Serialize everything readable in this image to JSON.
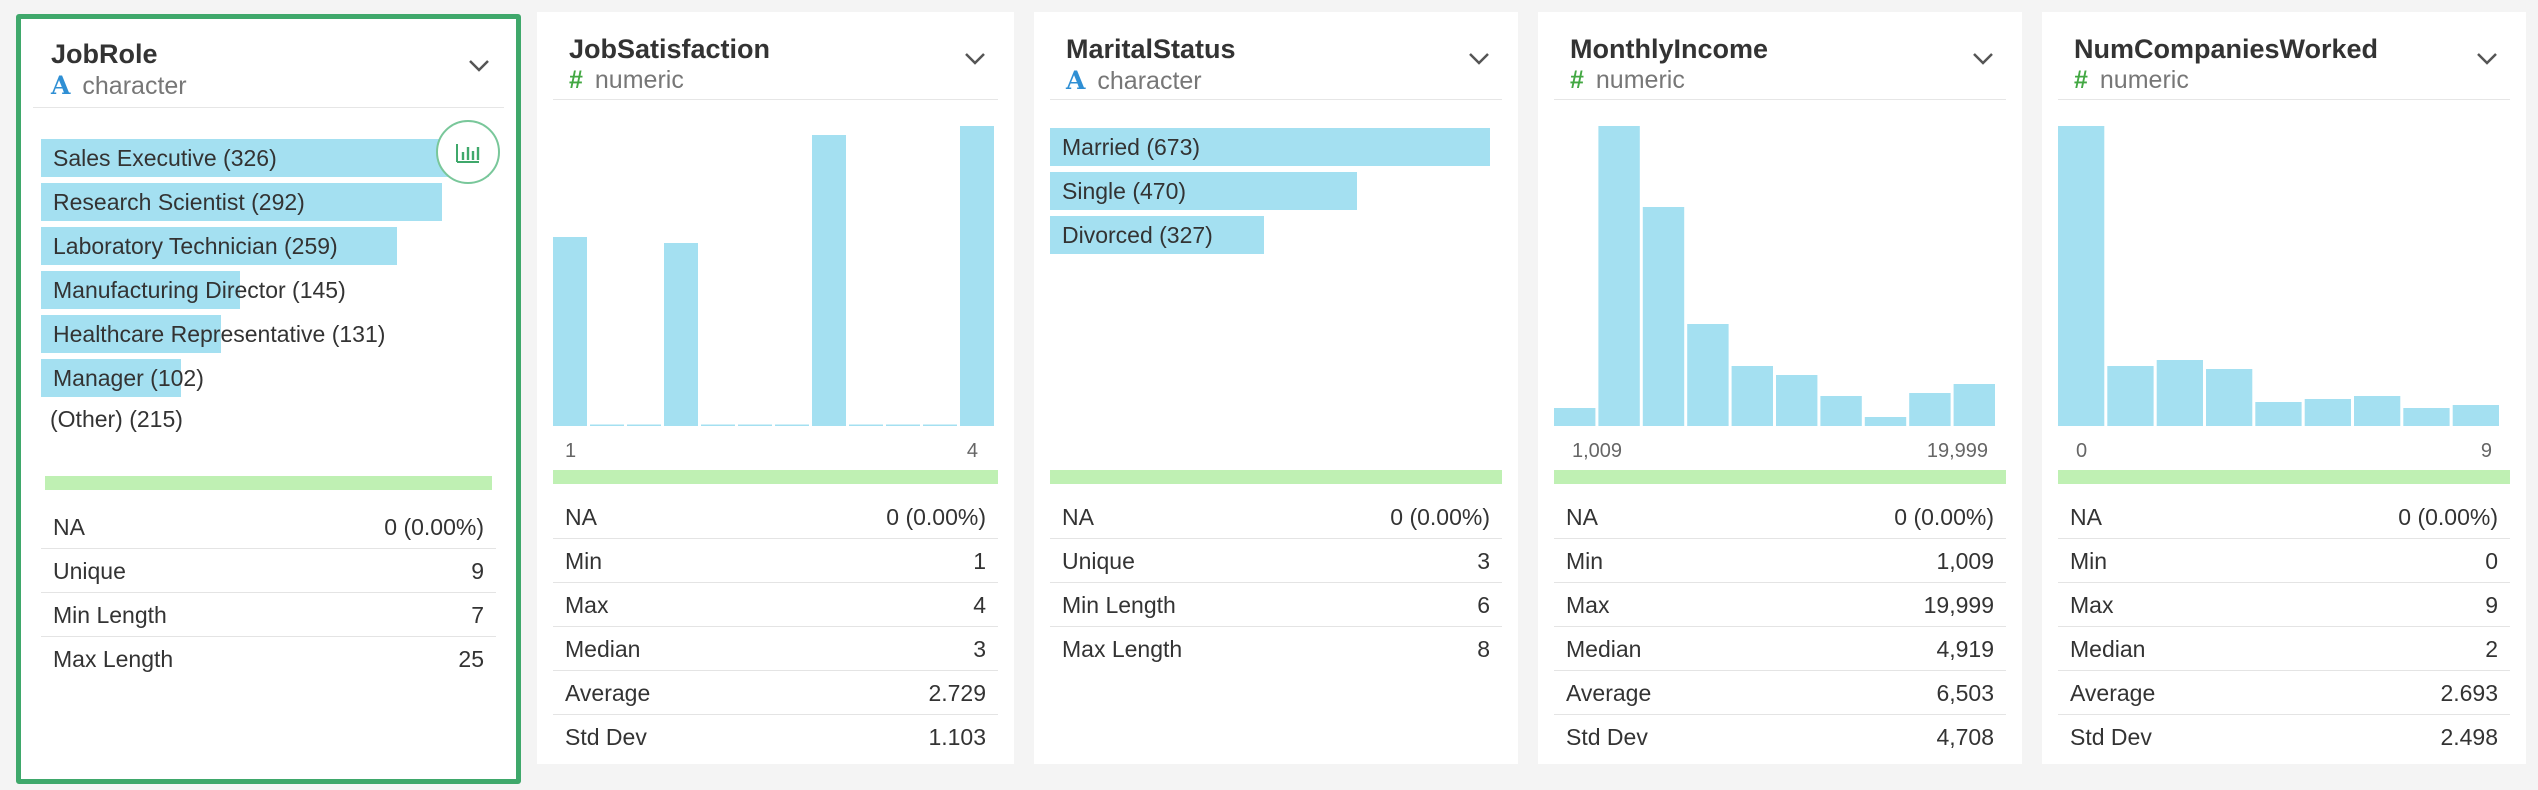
{
  "colors": {
    "accent": "#3fa86b",
    "bar": "#a4e0f1",
    "quality": "#bff0b3",
    "char_icon": "#2f8fd4",
    "num_icon": "#43a843"
  },
  "cards": [
    {
      "title": "JobRole",
      "type_icon": "A",
      "type": "character",
      "bars": [
        {
          "label": "Sales Executive (326)",
          "value": 326
        },
        {
          "label": "Research Scientist (292)",
          "value": 292
        },
        {
          "label": "Laboratory Technician (259)",
          "value": 259
        },
        {
          "label": "Manufacturing Director (145)",
          "value": 145
        },
        {
          "label": "Healthcare Representative (131)",
          "value": 131
        },
        {
          "label": "Manager (102)",
          "value": 102
        }
      ],
      "other": "(Other) (215)",
      "stats": [
        {
          "k": "NA",
          "v": "0 (0.00%)"
        },
        {
          "k": "Unique",
          "v": "9"
        },
        {
          "k": "Min Length",
          "v": "7"
        },
        {
          "k": "Max Length",
          "v": "25"
        }
      ]
    },
    {
      "title": "JobSatisfaction",
      "type_icon": "#",
      "type": "numeric",
      "hist": [
        0.63,
        0.005,
        0.005,
        0.61,
        0.005,
        0.005,
        0.005,
        0.97,
        0.005,
        0.005,
        0.005,
        1.0
      ],
      "axis_min": "1",
      "axis_max": "4",
      "stats": [
        {
          "k": "NA",
          "v": "0 (0.00%)"
        },
        {
          "k": "Min",
          "v": "1"
        },
        {
          "k": "Max",
          "v": "4"
        },
        {
          "k": "Median",
          "v": "3"
        },
        {
          "k": "Average",
          "v": "2.729"
        },
        {
          "k": "Std Dev",
          "v": "1.103"
        }
      ]
    },
    {
      "title": "MaritalStatus",
      "type_icon": "A",
      "type": "character",
      "bars": [
        {
          "label": "Married (673)",
          "value": 673
        },
        {
          "label": "Single (470)",
          "value": 470
        },
        {
          "label": "Divorced (327)",
          "value": 327
        }
      ],
      "stats": [
        {
          "k": "NA",
          "v": "0 (0.00%)"
        },
        {
          "k": "Unique",
          "v": "3"
        },
        {
          "k": "Min Length",
          "v": "6"
        },
        {
          "k": "Max Length",
          "v": "8"
        }
      ]
    },
    {
      "title": "MonthlyIncome",
      "type_icon": "#",
      "type": "numeric",
      "hist": [
        0.06,
        1.0,
        0.73,
        0.34,
        0.2,
        0.17,
        0.1,
        0.03,
        0.11,
        0.14
      ],
      "axis_min": "1,009",
      "axis_max": "19,999",
      "stats": [
        {
          "k": "NA",
          "v": "0 (0.00%)"
        },
        {
          "k": "Min",
          "v": "1,009"
        },
        {
          "k": "Max",
          "v": "19,999"
        },
        {
          "k": "Median",
          "v": "4,919"
        },
        {
          "k": "Average",
          "v": "6,503"
        },
        {
          "k": "Std Dev",
          "v": "4,708"
        }
      ]
    },
    {
      "title": "NumCompaniesWorked",
      "type_icon": "#",
      "type": "numeric",
      "hist": [
        1.0,
        0.2,
        0.22,
        0.19,
        0.08,
        0.09,
        0.1,
        0.06,
        0.07
      ],
      "axis_min": "0",
      "axis_max": "9",
      "stats": [
        {
          "k": "NA",
          "v": "0 (0.00%)"
        },
        {
          "k": "Min",
          "v": "0"
        },
        {
          "k": "Max",
          "v": "9"
        },
        {
          "k": "Median",
          "v": "2"
        },
        {
          "k": "Average",
          "v": "2.693"
        },
        {
          "k": "Std Dev",
          "v": "2.498"
        }
      ]
    }
  ]
}
